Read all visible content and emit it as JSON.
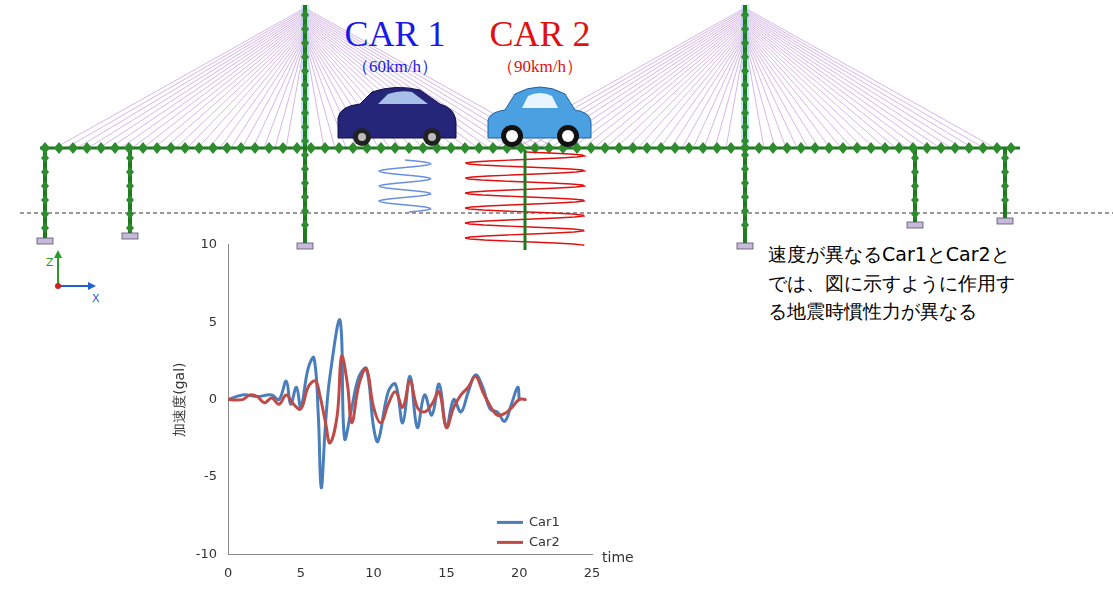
{
  "diagram": {
    "cars": [
      {
        "label": "CAR 1",
        "speed": "（60km/h）",
        "color": "#1a1ae6"
      },
      {
        "label": "CAR 2",
        "speed": "（90km/h）",
        "color": "#e01010"
      }
    ],
    "axis_labels": [
      "Z",
      "X"
    ]
  },
  "chart_data": {
    "type": "line",
    "y_label": "加速度(gal)",
    "x_label": "time",
    "xlim": [
      0,
      25
    ],
    "xticks": [
      0,
      5,
      10,
      15,
      20,
      25
    ],
    "ylim": [
      -10,
      10
    ],
    "yticks": [
      -10,
      -5,
      0,
      5,
      10
    ],
    "grid": false,
    "legend": "lower right",
    "series": [
      {
        "name": "Car1",
        "color": "#4a7ebb",
        "x": [
          0,
          1,
          2,
          3,
          3.5,
          4,
          4.3,
          4.7,
          5,
          5.5,
          5.9,
          6.2,
          6.4,
          6.7,
          7,
          7.7,
          8,
          8.5,
          9,
          9.5,
          10,
          10.3,
          11,
          11.5,
          12,
          12.5,
          13,
          13.5,
          14,
          14.5,
          15,
          15.5,
          16,
          16.5,
          17,
          17.5,
          18,
          18.5,
          19,
          19.5,
          19.9,
          20
        ],
        "values": [
          0,
          0.3,
          0.2,
          0.3,
          0,
          1.2,
          -0.3,
          0.8,
          -0.5,
          2.0,
          2.7,
          -1.0,
          -5.7,
          -1.5,
          1.5,
          5.1,
          -2.5,
          -0.5,
          1.5,
          2.0,
          -1.8,
          -2.7,
          0.5,
          1.0,
          -1.5,
          1.5,
          -1.8,
          0.3,
          -1.0,
          1.0,
          -1.8,
          0,
          -0.8,
          0.5,
          1.6,
          0.8,
          -0.6,
          -0.8,
          -1.4,
          -0.2,
          0.8,
          0
        ]
      },
      {
        "name": "Car2",
        "color": "#be4b48",
        "x": [
          0,
          1,
          1.5,
          2,
          2.5,
          3,
          3.5,
          4,
          4.5,
          5,
          5.5,
          6,
          6.3,
          6.7,
          7,
          7.5,
          7.8,
          8.2,
          8.5,
          9,
          9.5,
          10,
          10.5,
          11,
          11.5,
          12,
          12.5,
          13,
          13.5,
          14,
          14.5,
          15,
          15.5,
          16,
          16.5,
          17,
          17.5,
          18,
          18.5,
          19,
          19.5,
          20,
          20.5
        ],
        "values": [
          0,
          0,
          0.3,
          0.2,
          -0.2,
          0.1,
          -0.3,
          0.3,
          -0.3,
          -0.6,
          0.8,
          1.2,
          0.3,
          -1.5,
          -2.8,
          -1.0,
          2.8,
          1.0,
          -1.5,
          1.0,
          2.0,
          -0.5,
          -1.5,
          -0.3,
          0.5,
          -0.5,
          1.2,
          -0.5,
          -0.8,
          -0.3,
          0.5,
          -1.8,
          -0.5,
          0.3,
          0.8,
          1.5,
          0.5,
          -0.4,
          -1.0,
          -0.9,
          -0.5,
          0,
          0
        ]
      }
    ]
  },
  "note": "速度が異なるCar1とCar2とでは、図に示すように作用する地震時慣性力が異なる"
}
